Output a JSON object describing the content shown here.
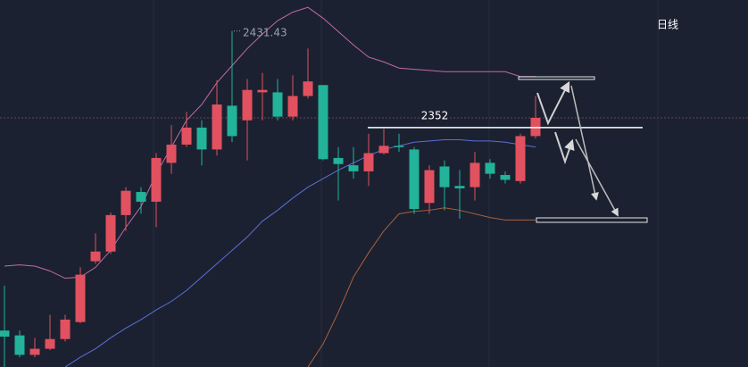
{
  "chart_data": {
    "type": "candlestick",
    "period": "日线",
    "ylim": [
      2155,
      2457
    ],
    "up_color": "#e2515f",
    "down_color": "#22b39a",
    "open": [
      2185,
      2181,
      2165,
      2170,
      2178,
      2192,
      2242,
      2250,
      2280,
      2299,
      2291,
      2323,
      2338,
      2352,
      2334,
      2370,
      2358,
      2381,
      2381,
      2361,
      2378,
      2387,
      2327,
      2321,
      2316,
      2331,
      2337,
      2334,
      2290,
      2320,
      2304,
      2303,
      2323,
      2313,
      2308,
      2345
    ],
    "high": [
      2222,
      2185,
      2179,
      2198,
      2198,
      2237,
      2265,
      2282,
      2303,
      2303,
      2331,
      2354,
      2365,
      2358,
      2391,
      2431.43,
      2392,
      2397,
      2392,
      2395,
      2417,
      2387,
      2336,
      2336,
      2347,
      2351,
      2347,
      2336,
      2321,
      2325,
      2317,
      2332,
      2326,
      2316,
      2347,
      2378
    ],
    "low": [
      2155,
      2163,
      2163,
      2169,
      2176,
      2191,
      2240,
      2248,
      2267,
      2281,
      2270,
      2314,
      2336,
      2321,
      2329,
      2340,
      2325,
      2358,
      2358,
      2358,
      2376,
      2325,
      2292,
      2310,
      2304,
      2330,
      2332,
      2281,
      2281,
      2284,
      2277,
      2292,
      2310,
      2306,
      2306,
      2343
    ],
    "close": [
      2180,
      2165,
      2170,
      2178,
      2194,
      2231,
      2250,
      2280,
      2300,
      2291,
      2327,
      2338,
      2352,
      2334,
      2371,
      2345,
      2383,
      2383,
      2361,
      2378,
      2390,
      2326,
      2322,
      2316,
      2331,
      2337,
      2336,
      2285,
      2317,
      2303,
      2302,
      2323,
      2314,
      2309,
      2345,
      2360
    ],
    "lines": [
      {
        "color": "#c36aa6",
        "values": [
          2238,
          2239,
          2238,
          2234,
          2228,
          2229,
          2237,
          2251,
          2270,
          2287,
          2314,
          2336,
          2358,
          2371,
          2389,
          2403,
          2417,
          2429,
          2440,
          2447,
          2451,
          2442,
          2431,
          2420,
          2410,
          2406,
          2401,
          2400,
          2399,
          2398,
          2398,
          2398,
          2398,
          2398,
          2394,
          2394
        ]
      },
      {
        "color": "#5b6fd8",
        "values": [
          null,
          null,
          null,
          null,
          2155,
          2163,
          2170,
          2179,
          2187,
          2194,
          2202,
          2209,
          2218,
          2229,
          2240,
          2251,
          2262,
          2275,
          2284,
          2294,
          2303,
          2310,
          2317,
          2323,
          2329,
          2334,
          2337,
          2340,
          2341,
          2342,
          2342,
          2341,
          2341,
          2340,
          2338,
          2336
        ]
      },
      {
        "color": "#a8603c",
        "values": [
          null,
          null,
          null,
          null,
          null,
          null,
          null,
          null,
          null,
          null,
          null,
          null,
          null,
          null,
          null,
          null,
          null,
          null,
          null,
          null,
          2155,
          2174,
          2200,
          2229,
          2249,
          2267,
          2281,
          2283,
          2284,
          2286,
          2284,
          2281,
          2278,
          2276,
          2276,
          2276
        ]
      }
    ],
    "price_line": 2352
  }
}
